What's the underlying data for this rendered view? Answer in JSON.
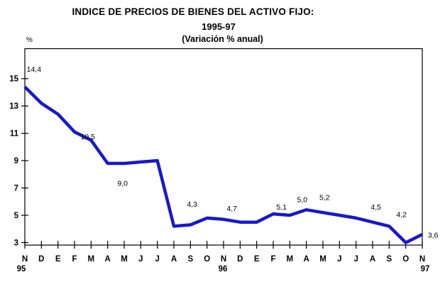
{
  "header": {
    "title_line1": "INDICE DE PRECIOS DE BIENES DEL ACTIVO FIJO:",
    "title_line2": "1995-97",
    "title_line3": "(Variación % anual)",
    "y_axis_unit": "%"
  },
  "chart_data": {
    "type": "line",
    "title": "INDICE DE PRECIOS DE BIENES DEL ACTIVO FIJO: 1995-97 (Variación % anual)",
    "ylabel": "%",
    "xlabel": "",
    "ylim": [
      3,
      15
    ],
    "y_ticks": [
      15,
      13,
      11,
      9,
      7,
      5,
      3
    ],
    "grid": false,
    "legend_position": "none",
    "line_color": "#1717CF",
    "axis_color": "#000000",
    "categories": [
      "N",
      "D",
      "E",
      "F",
      "M",
      "A",
      "M",
      "J",
      "J",
      "A",
      "S",
      "O",
      "N",
      "D",
      "E",
      "F",
      "M",
      "A",
      "M",
      "J",
      "J",
      "A",
      "S",
      "O",
      "N"
    ],
    "year_markers": [
      {
        "label": "95",
        "index": 0
      },
      {
        "label": "96",
        "index": 12
      },
      {
        "label": "97",
        "index": 24
      }
    ],
    "series": [
      {
        "name": "Variación % anual",
        "values": [
          14.4,
          13.2,
          12.4,
          11.1,
          10.5,
          8.8,
          8.8,
          8.9,
          9.0,
          4.2,
          4.3,
          4.8,
          4.7,
          4.5,
          4.5,
          5.1,
          5.0,
          5.4,
          5.2,
          5.0,
          4.8,
          4.5,
          4.2,
          3.0,
          3.6
        ]
      }
    ],
    "point_labels": [
      {
        "text": "14,4",
        "x": 0.55,
        "y": 15.7
      },
      {
        "text": "10,5",
        "x": 3.8,
        "y": 10.75
      },
      {
        "text": "9,0",
        "x": 5.9,
        "y": 7.35
      },
      {
        "text": "4,3",
        "x": 10.1,
        "y": 5.8
      },
      {
        "text": "4,7",
        "x": 12.5,
        "y": 5.5
      },
      {
        "text": "5,1",
        "x": 15.5,
        "y": 5.6
      },
      {
        "text": "5,0",
        "x": 16.75,
        "y": 6.15
      },
      {
        "text": "5,2",
        "x": 18.1,
        "y": 6.3
      },
      {
        "text": "4,5",
        "x": 21.2,
        "y": 5.6
      },
      {
        "text": "4,2",
        "x": 22.75,
        "y": 5.05
      },
      {
        "text": "3,6",
        "x": 24.65,
        "y": 3.55
      }
    ]
  }
}
